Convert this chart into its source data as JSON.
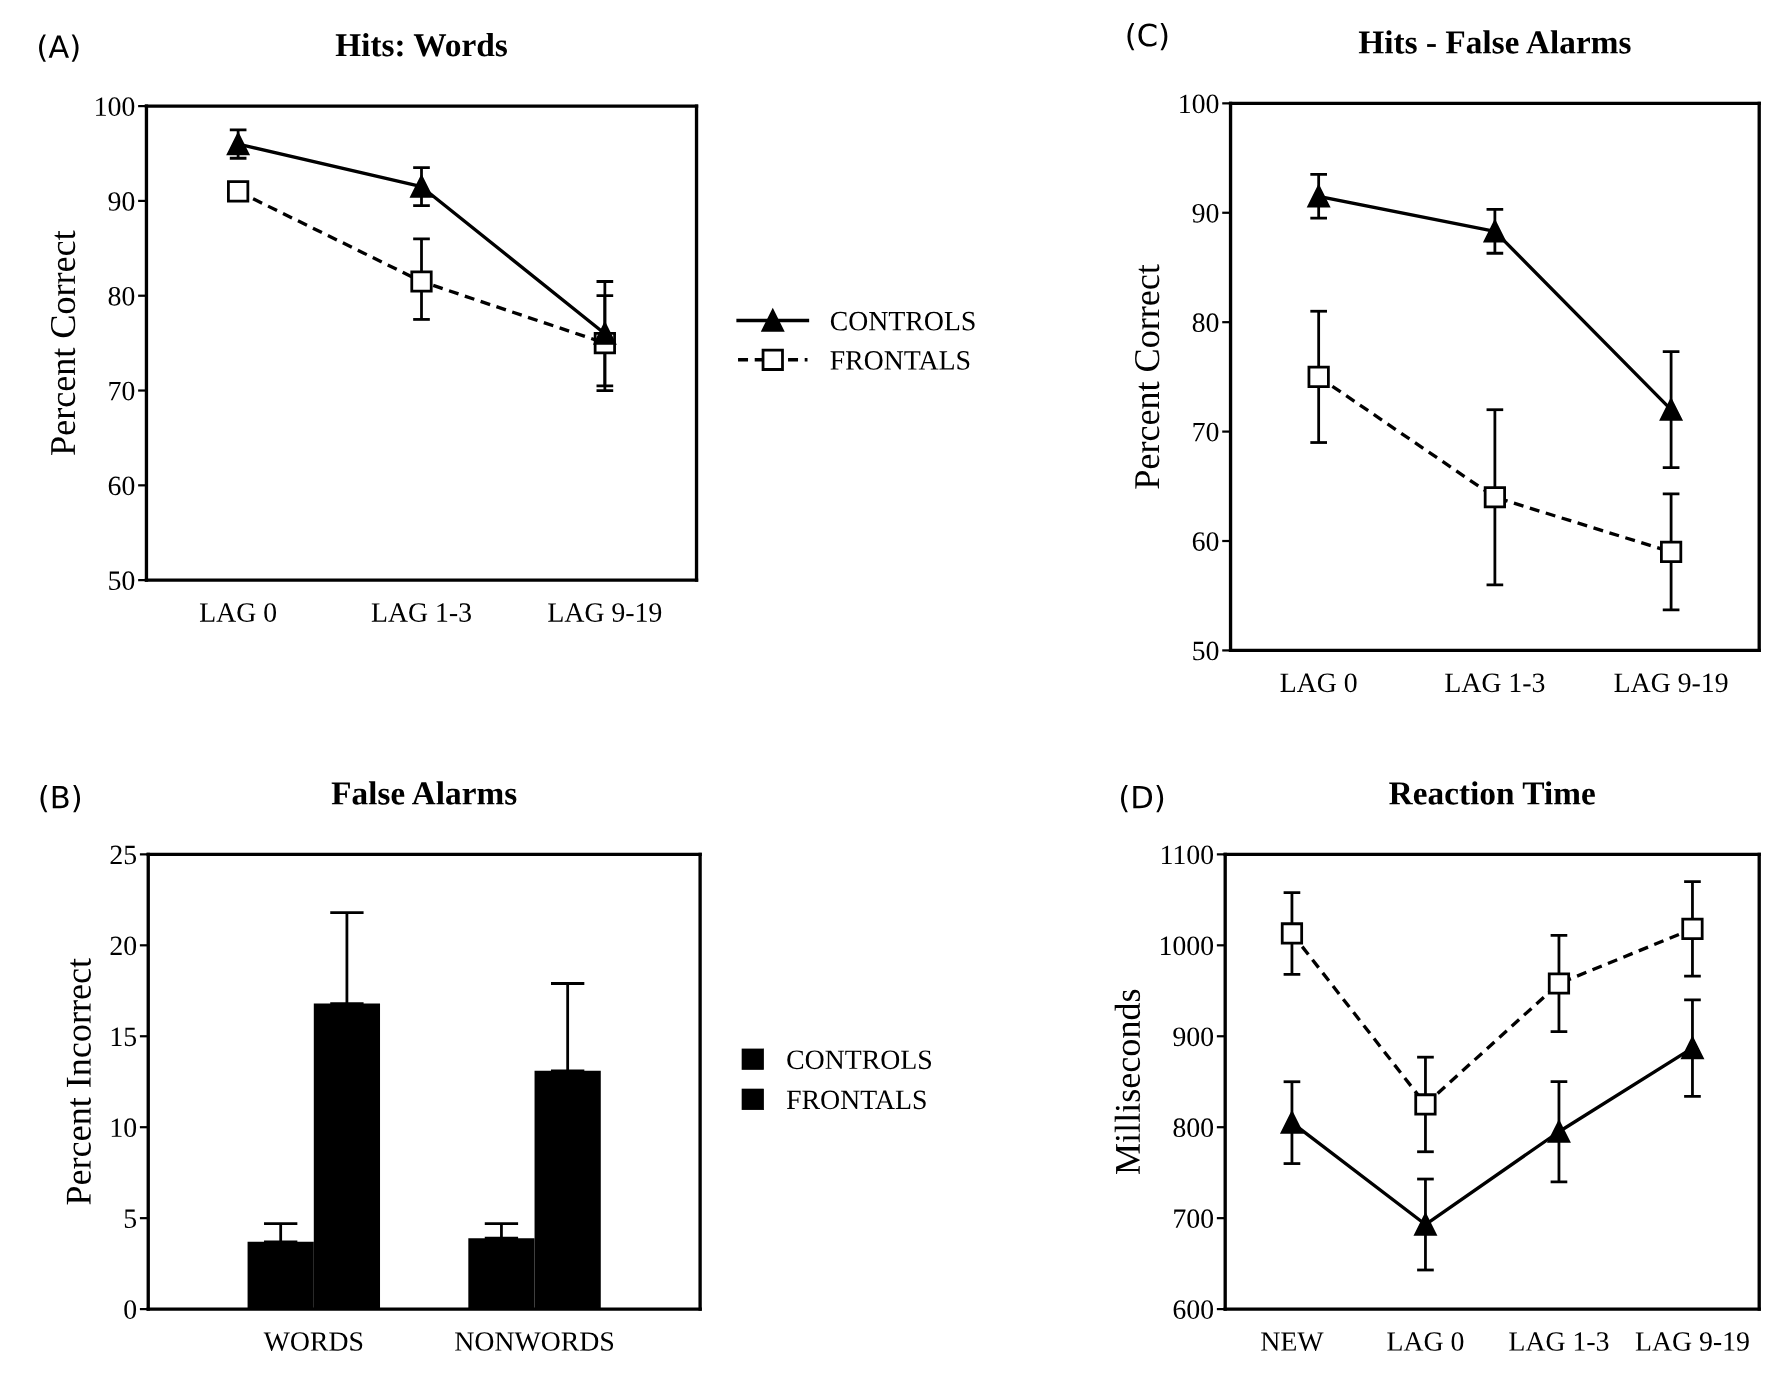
{
  "chart_data": [
    {
      "type": "line",
      "title": "Hits: Words",
      "ylabel": "Percent Correct",
      "annotations": [
        "(A)"
      ],
      "categories": [
        "LAG 0",
        "LAG 1-3",
        "LAG 9-19"
      ],
      "ylim": [
        50,
        100
      ],
      "yticks": [
        50,
        60,
        70,
        80,
        90,
        100
      ],
      "grid": false,
      "legend": "right",
      "series": [
        {
          "name": "CONTROLS",
          "color": "#000000",
          "marker": "triangle",
          "line_style": "solid",
          "values": [
            96,
            91.5,
            76
          ],
          "errors": [
            1.5,
            2,
            5.5
          ]
        },
        {
          "name": "FRONTALS",
          "color": "#000000",
          "marker": "square",
          "line_style": "dashed",
          "values": [
            91,
            81.5,
            75
          ],
          "errors": [
            0.8,
            [
              77.5,
              86
            ],
            5
          ]
        }
      ]
    },
    {
      "type": "line",
      "title": "Hits - False Alarms",
      "ylabel": "Percent Correct",
      "annotations": [
        "(C)"
      ],
      "categories": [
        "LAG 0",
        "LAG 1-3",
        "LAG 9-19"
      ],
      "ylim": [
        50,
        100
      ],
      "yticks": [
        50,
        60,
        70,
        80,
        90,
        100
      ],
      "grid": false,
      "legend": false,
      "series": [
        {
          "color": "#000000",
          "marker": "triangle",
          "line_style": "solid",
          "values": [
            91.5,
            88.3,
            72
          ],
          "errors": [
            2,
            2,
            5.3
          ]
        },
        {
          "color": "#000000",
          "marker": "square",
          "line_style": "dashed",
          "values": [
            75,
            64,
            59
          ],
          "errors": [
            6,
            8,
            5.3
          ]
        }
      ]
    },
    {
      "type": "bar",
      "title": "False Alarms",
      "ylabel": "Percent Incorrect",
      "annotations": [
        "(B)"
      ],
      "categories": [
        "WORDS",
        "NONWORDS"
      ],
      "ylim": [
        0,
        25
      ],
      "yticks": [
        0,
        5,
        10,
        15,
        20,
        25
      ],
      "grid": false,
      "legend": "right",
      "series": [
        {
          "name": "CONTROLS",
          "color": "#000000",
          "values": [
            3.7,
            3.9
          ],
          "errors": [
            [
              3.7,
              4.7
            ],
            [
              3.9,
              4.7
            ]
          ]
        },
        {
          "name": "FRONTALS",
          "color": "#000000",
          "values": [
            16.8,
            13.1
          ],
          "errors": [
            [
              16.8,
              21.8
            ],
            [
              13.1,
              17.9
            ]
          ]
        }
      ]
    },
    {
      "type": "line",
      "title": "Reaction Time",
      "ylabel": "Milliseconds",
      "annotations": [
        "(D)"
      ],
      "categories": [
        "NEW",
        "LAG 0",
        "LAG 1-3",
        "LAG 9-19"
      ],
      "ylim": [
        600,
        1100
      ],
      "yticks": [
        600,
        700,
        800,
        900,
        1000,
        1100
      ],
      "grid": false,
      "legend": false,
      "series": [
        {
          "color": "#000000",
          "marker": "triangle",
          "line_style": "solid",
          "values": [
            805,
            693,
            795,
            887
          ],
          "errors": [
            45,
            50,
            55,
            53
          ]
        },
        {
          "color": "#000000",
          "marker": "square",
          "line_style": "dashed",
          "values": [
            1013,
            825,
            958,
            1018
          ],
          "errors": [
            45,
            52,
            53,
            52
          ]
        }
      ]
    }
  ]
}
